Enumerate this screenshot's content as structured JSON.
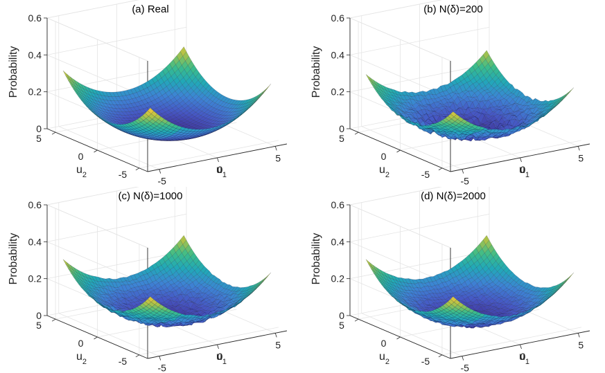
{
  "colors": {
    "background": "#ffffff",
    "colormap": [
      "#3e2a8c",
      "#4657c4",
      "#3d84d4",
      "#21a8b8",
      "#3cbc8a",
      "#a9c24a",
      "#f5c739",
      "#f9e63c"
    ],
    "surface_edge": "#0b0b20"
  },
  "chart_data": [
    {
      "type": "surface3d",
      "title": "(a) Real",
      "xlabel": "u",
      "xlabel_sub": "1",
      "ylabel": "u",
      "ylabel_sub": "2",
      "zlabel": "Probability",
      "xticks": [
        "-5",
        "0",
        "5"
      ],
      "yticks": [
        "-5",
        "0",
        "5"
      ],
      "zticks": [
        "0",
        "0.2",
        "0.4",
        "0.6"
      ],
      "xlim": [
        -6,
        6
      ],
      "ylim": [
        -6,
        6
      ],
      "zlim": [
        0,
        0.6
      ],
      "grid": true,
      "surface": {
        "corner_peak": 0.32,
        "center_floor": 0.01,
        "noise": 0
      }
    },
    {
      "type": "surface3d",
      "title": "(b) N(δ)=200",
      "xlabel": "u",
      "xlabel_sub": "1",
      "ylabel": "u",
      "ylabel_sub": "2",
      "zlabel": "Probability",
      "xticks": [
        "-5",
        "0",
        "5"
      ],
      "yticks": [
        "-5",
        "0",
        "5"
      ],
      "zticks": [
        "0",
        "0.2",
        "0.4",
        "0.6"
      ],
      "xlim": [
        -6,
        6
      ],
      "ylim": [
        -6,
        6
      ],
      "zlim": [
        0,
        0.6
      ],
      "grid": true,
      "surface": {
        "corner_peak": 0.3,
        "center_floor": 0.02,
        "noise": 0.03
      }
    },
    {
      "type": "surface3d",
      "title": "(c) N(δ)=1000",
      "xlabel": "u",
      "xlabel_sub": "1",
      "ylabel": "u",
      "ylabel_sub": "2",
      "zlabel": "Probability",
      "xticks": [
        "-5",
        "0",
        "5"
      ],
      "yticks": [
        "-5",
        "0",
        "5"
      ],
      "zticks": [
        "0",
        "0.2",
        "0.4",
        "0.6"
      ],
      "xlim": [
        -6,
        6
      ],
      "ylim": [
        -6,
        6
      ],
      "zlim": [
        0,
        0.6
      ],
      "grid": true,
      "surface": {
        "corner_peak": 0.31,
        "center_floor": 0.02,
        "noise": 0.02
      }
    },
    {
      "type": "surface3d",
      "title": "(d) N(δ)=2000",
      "xlabel": "u",
      "xlabel_sub": "1",
      "ylabel": "u",
      "ylabel_sub": "2",
      "zlabel": "Probability",
      "xticks": [
        "-5",
        "0",
        "5"
      ],
      "yticks": [
        "-5",
        "0",
        "5"
      ],
      "zticks": [
        "0",
        "0.2",
        "0.4",
        "0.6"
      ],
      "xlim": [
        -6,
        6
      ],
      "ylim": [
        -6,
        6
      ],
      "zlim": [
        0,
        0.6
      ],
      "grid": true,
      "surface": {
        "corner_peak": 0.31,
        "center_floor": 0.015,
        "noise": 0.015
      }
    }
  ]
}
